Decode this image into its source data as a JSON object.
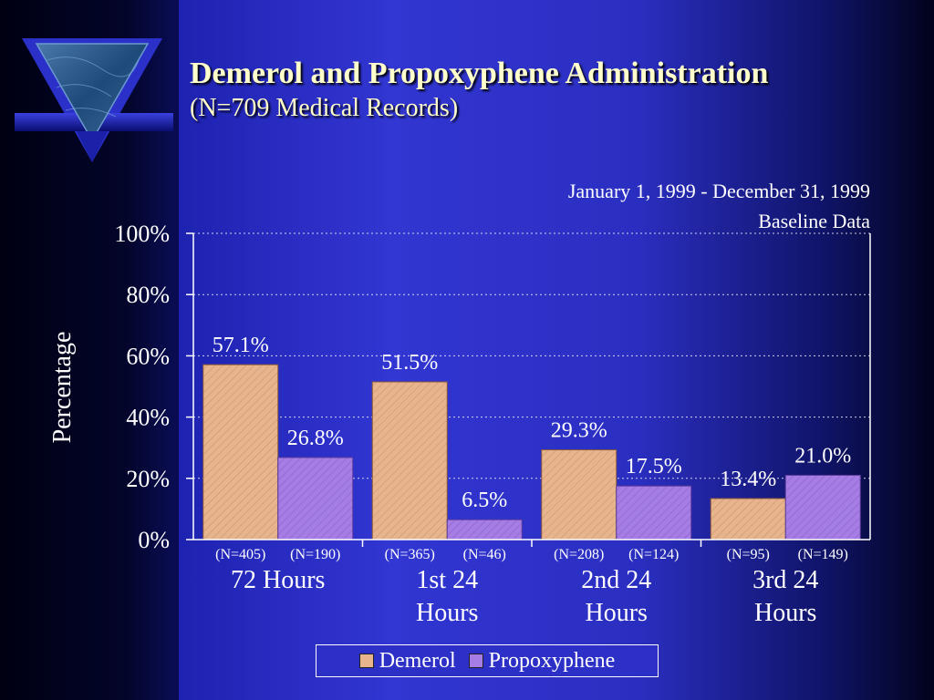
{
  "slide": {
    "title": "Demerol and Propoxyphene Administration",
    "subtitle": "(N=709 Medical Records)",
    "date_range": "January 1, 1999 - December 31, 1999",
    "baseline_label": "Baseline Data"
  },
  "colors": {
    "demerol": "#e8b48e",
    "propoxyphene": "#a57de4",
    "accent_title": "#ffffcc"
  },
  "chart_data": {
    "type": "bar",
    "ylabel": "Percentage",
    "ylim": [
      0,
      100
    ],
    "yticks": [
      0,
      20,
      40,
      60,
      80,
      100
    ],
    "ytick_labels": [
      "0%",
      "20%",
      "40%",
      "60%",
      "80%",
      "100%"
    ],
    "grid": true,
    "legend_position": "bottom",
    "categories": [
      [
        "72 Hours"
      ],
      [
        "1st 24",
        "Hours"
      ],
      [
        "2nd 24",
        "Hours"
      ],
      [
        "3rd 24",
        "Hours"
      ]
    ],
    "series": [
      {
        "name": "Demerol",
        "values": [
          57.1,
          51.5,
          29.3,
          13.4
        ],
        "value_labels": [
          "57.1%",
          "51.5%",
          "29.3%",
          "13.4%"
        ],
        "n_labels": [
          "(N=405)",
          "(N=365)",
          "(N=208)",
          "(N=95)"
        ]
      },
      {
        "name": "Propoxyphene",
        "values": [
          26.8,
          6.5,
          17.5,
          21.0
        ],
        "value_labels": [
          "26.8%",
          "6.5%",
          "17.5%",
          "21.0%"
        ],
        "n_labels": [
          "(N=190)",
          "(N=46)",
          "(N=124)",
          "(N=149)"
        ]
      }
    ]
  }
}
